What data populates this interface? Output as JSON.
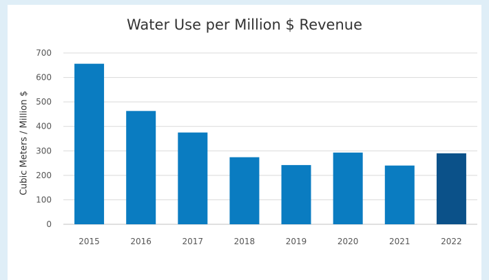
{
  "chart_data": {
    "type": "bar",
    "title": "Water Use per Million $ Revenue",
    "xlabel": "",
    "ylabel": "Cubic Meters / Million $",
    "categories": [
      "2015",
      "2016",
      "2017",
      "2018",
      "2019",
      "2020",
      "2021",
      "2022"
    ],
    "values": [
      656,
      463,
      375,
      274,
      242,
      293,
      240,
      290
    ],
    "ylim": [
      0,
      700
    ],
    "yticks": [
      "0",
      "100",
      "200",
      "300",
      "400",
      "500",
      "600",
      "700"
    ],
    "grid": true,
    "legend": "none",
    "colors": {
      "bar": "#0a7cc1",
      "highlight_bar": "#0b5189",
      "gridline": "#d9d9d9",
      "axis": "#bfbfbf",
      "background": "#dfeef7"
    },
    "highlight_index": 7
  }
}
